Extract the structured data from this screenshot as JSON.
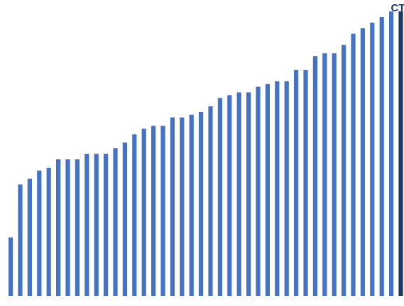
{
  "chart_data": {
    "type": "bar",
    "title": "",
    "xlabel": "",
    "ylabel": "",
    "ylim": [
      0,
      100
    ],
    "highlight_label": "CT",
    "colors": {
      "bar": "#4472c4",
      "highlight": "#1f3864"
    },
    "values": [
      21,
      40,
      42,
      45,
      46,
      49,
      49,
      49,
      51,
      51,
      51,
      53,
      55,
      58,
      60,
      61,
      61,
      64,
      64,
      65,
      66,
      68,
      71,
      72,
      73,
      73,
      75,
      76,
      77,
      77,
      81,
      81,
      86,
      87,
      87,
      90,
      94,
      96,
      98,
      100,
      102,
      102
    ]
  }
}
